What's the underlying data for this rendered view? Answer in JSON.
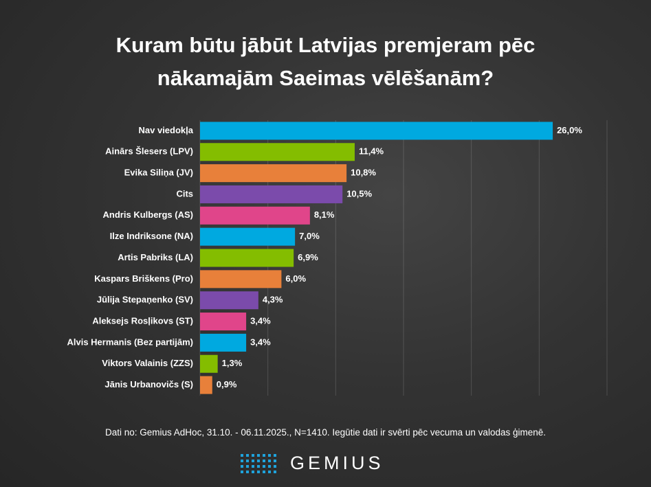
{
  "chart_data": {
    "type": "barh",
    "title": "Kuram būtu jābūt Latvijas premjeram pēc nākamajām Saeimas vēlēšanām?",
    "categories": [
      "Nav viedokļa",
      "Ainārs Šlesers (LPV)",
      "Evika Siliņa (JV)",
      "Cits",
      "Andris Kulbergs (AS)",
      "Ilze Indriksone (NA)",
      "Artis Pabriks (LA)",
      "Kaspars Briškens (Pro)",
      "Jūlija Stepaņenko (SV)",
      "Aleksejs Rosļikovs (ST)",
      "Alvis Hermanis (Bez partijām)",
      "Viktors Valainis (ZZS)",
      "Jānis Urbanovičs (S)"
    ],
    "values": [
      26.0,
      11.4,
      10.8,
      10.5,
      8.1,
      7.0,
      6.9,
      6.0,
      4.3,
      3.4,
      3.4,
      1.3,
      0.9
    ],
    "value_labels": [
      "26,0%",
      "11,4%",
      "10,8%",
      "10,5%",
      "8,1%",
      "7,0%",
      "6,9%",
      "6,0%",
      "4,3%",
      "3,4%",
      "3,4%",
      "1,3%",
      "0,9%"
    ],
    "colors": [
      "#00a9e0",
      "#84bd00",
      "#e8803a",
      "#7b4bab",
      "#e0458a",
      "#00a9e0",
      "#84bd00",
      "#e8803a",
      "#7b4bab",
      "#e0458a",
      "#00a9e0",
      "#84bd00",
      "#e8803a"
    ],
    "xlim": [
      0,
      30
    ],
    "xticks": [
      0,
      5,
      10,
      15,
      20,
      25,
      30
    ],
    "grid": true,
    "source": "Dati no: Gemius AdHoc, 31.10. - 06.11.2025., N=1410. Iegūtie dati ir svērti pēc vecuma un valodas ģimenē.",
    "brand": "GEMIUS"
  }
}
